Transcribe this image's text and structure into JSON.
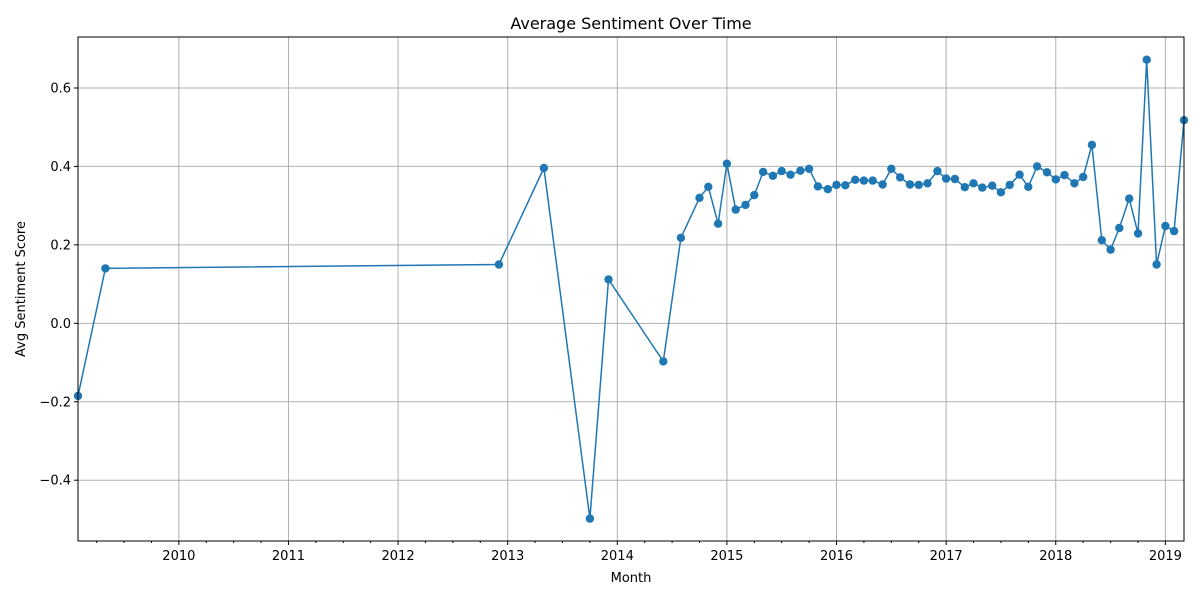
{
  "chart_data": {
    "type": "line",
    "title": "Average Sentiment Over Time",
    "xlabel": "Month",
    "ylabel": "Avg Sentiment Score",
    "grid": true,
    "series_color": "#1f77b4",
    "xlim": [
      2009.08,
      2019.17
    ],
    "ylim": [
      -0.555,
      0.73
    ],
    "x_ticks": [
      2010,
      2011,
      2012,
      2013,
      2014,
      2015,
      2016,
      2017,
      2018,
      2019
    ],
    "x_tick_labels": [
      "2010",
      "2011",
      "2012",
      "2013",
      "2014",
      "2015",
      "2016",
      "2017",
      "2018",
      "2019"
    ],
    "y_ticks": [
      -0.4,
      -0.2,
      0.0,
      0.2,
      0.4,
      0.6
    ],
    "y_tick_labels": [
      "−0.4",
      "−0.2",
      "0.0",
      "0.2",
      "0.4",
      "0.6"
    ],
    "series": [
      {
        "name": "Avg Sentiment Score",
        "x": [
          2009.08,
          2009.33,
          2012.92,
          2013.33,
          2013.75,
          2013.92,
          2014.42,
          2014.58,
          2014.75,
          2014.83,
          2014.92,
          2015.0,
          2015.08,
          2015.17,
          2015.25,
          2015.33,
          2015.42,
          2015.5,
          2015.58,
          2015.67,
          2015.75,
          2015.83,
          2015.92,
          2016.0,
          2016.08,
          2016.17,
          2016.25,
          2016.33,
          2016.42,
          2016.5,
          2016.58,
          2016.67,
          2016.75,
          2016.83,
          2016.92,
          2017.0,
          2017.08,
          2017.17,
          2017.25,
          2017.33,
          2017.42,
          2017.5,
          2017.58,
          2017.67,
          2017.75,
          2017.83,
          2017.92,
          2018.0,
          2018.08,
          2018.17,
          2018.25,
          2018.33,
          2018.42,
          2018.5,
          2018.58,
          2018.67,
          2018.75,
          2018.83,
          2018.92,
          2019.0,
          2019.08,
          2019.17
        ],
        "y": [
          -0.185,
          0.14,
          0.15,
          0.396,
          -0.498,
          0.112,
          -0.097,
          0.218,
          0.32,
          0.348,
          0.254,
          0.407,
          0.29,
          0.302,
          0.327,
          0.386,
          0.376,
          0.388,
          0.379,
          0.389,
          0.394,
          0.349,
          0.342,
          0.353,
          0.352,
          0.366,
          0.364,
          0.364,
          0.354,
          0.394,
          0.372,
          0.354,
          0.353,
          0.357,
          0.388,
          0.369,
          0.368,
          0.347,
          0.357,
          0.346,
          0.351,
          0.334,
          0.353,
          0.379,
          0.348,
          0.4,
          0.385,
          0.367,
          0.378,
          0.357,
          0.373,
          0.455,
          0.212,
          0.188,
          0.243,
          0.318,
          0.229,
          0.672,
          0.15,
          0.248,
          0.235,
          0.518
        ]
      }
    ]
  }
}
